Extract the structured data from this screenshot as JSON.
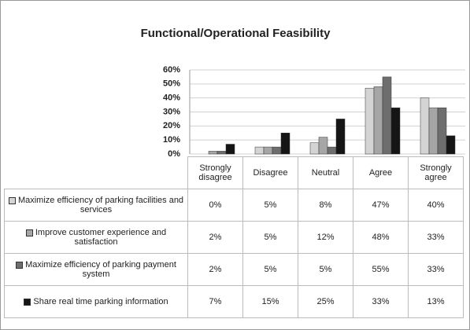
{
  "chart_data": {
    "type": "bar",
    "title": "Functional/Operational Feasibility",
    "categories": [
      "Strongly disagree",
      "Disagree",
      "Neutral",
      "Agree",
      "Strongly agree"
    ],
    "series": [
      {
        "name": "Maximize efficiency of parking facilities and services",
        "color": "#d4d4d4",
        "values": [
          0,
          5,
          8,
          47,
          40
        ],
        "value_labels": [
          "0%",
          "5%",
          "8%",
          "47%",
          "40%"
        ]
      },
      {
        "name": "Improve customer experience and satisfaction",
        "color": "#a6a6a6",
        "values": [
          2,
          5,
          12,
          48,
          33
        ],
        "value_labels": [
          "2%",
          "5%",
          "12%",
          "48%",
          "33%"
        ]
      },
      {
        "name": "Maximize efficiency of parking payment system",
        "color": "#6e6e6e",
        "values": [
          2,
          5,
          5,
          55,
          33
        ],
        "value_labels": [
          "2%",
          "5%",
          "5%",
          "55%",
          "33%"
        ]
      },
      {
        "name": "Share real time parking information",
        "color": "#151515",
        "values": [
          7,
          15,
          25,
          33,
          13
        ],
        "value_labels": [
          "7%",
          "15%",
          "25%",
          "33%",
          "13%"
        ]
      }
    ],
    "ylim": [
      0,
      60
    ],
    "yticks": [
      {
        "value": 0,
        "label": "0%"
      },
      {
        "value": 10,
        "label": "10%"
      },
      {
        "value": 20,
        "label": "20%"
      },
      {
        "value": 30,
        "label": "30%"
      },
      {
        "value": 40,
        "label": "40%"
      },
      {
        "value": 50,
        "label": "50%"
      },
      {
        "value": 60,
        "label": "60%"
      }
    ],
    "grid": true
  }
}
